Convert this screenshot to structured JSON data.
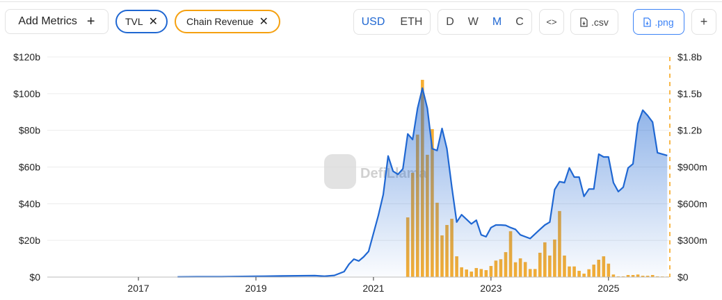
{
  "toolbar": {
    "add_metrics_label": "Add Metrics",
    "add_icon": "plus-icon",
    "metrics": [
      {
        "label": "TVL",
        "color": "#1f67d2",
        "close_icon": "close-icon"
      },
      {
        "label": "Chain Revenue",
        "color": "#f5a00f",
        "close_icon": "close-icon"
      }
    ],
    "currency": {
      "options": [
        "USD",
        "ETH"
      ],
      "selected": "USD"
    },
    "granularity": {
      "options": [
        "D",
        "W",
        "M",
        "C"
      ],
      "selected": "M"
    },
    "embed_icon": "code-icon",
    "csv_label": ".csv",
    "png_label": ".png",
    "file_icon": "file-download-icon",
    "more_label": "+"
  },
  "watermark": "DefiLlama",
  "chart_data": {
    "type": "line+bar",
    "x_ticks": [
      "2017",
      "2019",
      "2021",
      "2023",
      "2025"
    ],
    "y_left": {
      "ticks": [
        "$0",
        "$20b",
        "$40b",
        "$60b",
        "$80b",
        "$100b",
        "$120b"
      ],
      "range": [
        0,
        120
      ],
      "unit": "billion USD"
    },
    "y_right": {
      "ticks": [
        "$0",
        "$300m",
        "$600m",
        "$900m",
        "$1.2b",
        "$1.5b",
        "$1.8b"
      ],
      "range": [
        0,
        1800
      ],
      "unit": "million USD"
    },
    "grid": true,
    "series": [
      {
        "name": "TVL",
        "type": "area-line",
        "axis": "left",
        "color": "#1f67d2",
        "points": [
          [
            "2017-09",
            0.1
          ],
          [
            "2018-01",
            0.2
          ],
          [
            "2018-06",
            0.2
          ],
          [
            "2019-01",
            0.4
          ],
          [
            "2019-06",
            0.6
          ],
          [
            "2020-01",
            0.8
          ],
          [
            "2020-03",
            0.5
          ],
          [
            "2020-05",
            0.9
          ],
          [
            "2020-07",
            3
          ],
          [
            "2020-08",
            7
          ],
          [
            "2020-09",
            9.8
          ],
          [
            "2020-10",
            8.8
          ],
          [
            "2020-11",
            11
          ],
          [
            "2020-12",
            14
          ],
          [
            "2021-02",
            33.7
          ],
          [
            "2021-03",
            45
          ],
          [
            "2021-04",
            66
          ],
          [
            "2021-05",
            57.7
          ],
          [
            "2021-06",
            56
          ],
          [
            "2021-07",
            59
          ],
          [
            "2021-08",
            78
          ],
          [
            "2021-09",
            75
          ],
          [
            "2021-10",
            92
          ],
          [
            "2021-11",
            103
          ],
          [
            "2021-12",
            92
          ],
          [
            "2022-01",
            70
          ],
          [
            "2022-02",
            69
          ],
          [
            "2022-03",
            81
          ],
          [
            "2022-04",
            70
          ],
          [
            "2022-05",
            49
          ],
          [
            "2022-06",
            30
          ],
          [
            "2022-07",
            34
          ],
          [
            "2022-08",
            31.5
          ],
          [
            "2022-09",
            29
          ],
          [
            "2022-10",
            31
          ],
          [
            "2022-11",
            23
          ],
          [
            "2022-12",
            22
          ],
          [
            "2023-01",
            27
          ],
          [
            "2023-02",
            28.4
          ],
          [
            "2023-03",
            28.4
          ],
          [
            "2023-04",
            28.2
          ],
          [
            "2023-05",
            27
          ],
          [
            "2023-06",
            26
          ],
          [
            "2023-07",
            23
          ],
          [
            "2023-08",
            22
          ],
          [
            "2023-09",
            21
          ],
          [
            "2023-10",
            23.5
          ],
          [
            "2023-11",
            26
          ],
          [
            "2023-12",
            28.4
          ],
          [
            "2024-01",
            30
          ],
          [
            "2024-02",
            47.7
          ],
          [
            "2024-03",
            52
          ],
          [
            "2024-04",
            51.5
          ],
          [
            "2024-05",
            59.5
          ],
          [
            "2024-06",
            54.5
          ],
          [
            "2024-07",
            54.5
          ],
          [
            "2024-08",
            44
          ],
          [
            "2024-09",
            48
          ],
          [
            "2024-10",
            48
          ],
          [
            "2024-11",
            67
          ],
          [
            "2024-12",
            65.5
          ],
          [
            "2025-01",
            65.5
          ],
          [
            "2025-02",
            51.5
          ],
          [
            "2025-03",
            46.6
          ],
          [
            "2025-04",
            49
          ],
          [
            "2025-05",
            59.5
          ],
          [
            "2025-06",
            61.7
          ],
          [
            "2025-07",
            83.7
          ],
          [
            "2025-08",
            91
          ],
          [
            "2025-09",
            88
          ],
          [
            "2025-10",
            84.5
          ],
          [
            "2025-11",
            67.8
          ],
          [
            "2026-01",
            66.3
          ]
        ]
      },
      {
        "name": "Chain Revenue",
        "type": "bar",
        "axis": "right",
        "color": "#f5a00f",
        "start": "2021-08",
        "values": [
          488,
          852,
          1165,
          1613,
          1000,
          1210,
          608,
          341,
          426,
          477,
          170,
          80,
          62,
          45,
          74,
          66,
          57,
          91,
          135,
          146,
          204,
          375,
          121,
          153,
          123,
          66,
          66,
          199,
          284,
          176,
          307,
          540,
          176,
          87,
          87,
          51,
          28,
          64,
          102,
          142,
          170,
          110,
          21,
          6,
          6,
          17,
          17,
          21,
          11,
          11,
          17,
          6,
          5,
          4
        ]
      }
    ]
  }
}
